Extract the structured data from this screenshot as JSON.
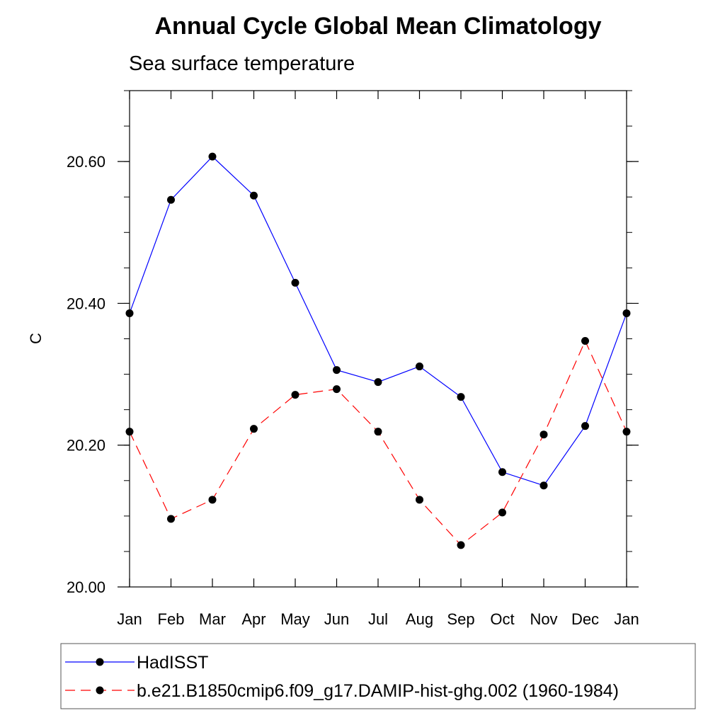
{
  "chart_data": {
    "type": "line",
    "title": "Annual Cycle Global Mean Climatology",
    "subtitle": "Sea surface temperature",
    "xlabel": "",
    "ylabel": "C",
    "categories": [
      "Jan",
      "Feb",
      "Mar",
      "Apr",
      "May",
      "Jun",
      "Jul",
      "Aug",
      "Sep",
      "Oct",
      "Nov",
      "Dec",
      "Jan"
    ],
    "ylim": [
      20.0,
      20.7
    ],
    "yticks": [
      20.0,
      20.2,
      20.4,
      20.6
    ],
    "ytick_labels": [
      "20.00",
      "20.20",
      "20.40",
      "20.60"
    ],
    "yminor_step": 0.05,
    "grid": false,
    "legend_position": "bottom",
    "series": [
      {
        "name": "HadISST",
        "color": "#0000ff",
        "dash": "solid",
        "marker": "circle",
        "values": [
          20.386,
          20.546,
          20.607,
          20.552,
          20.429,
          20.306,
          20.289,
          20.311,
          20.268,
          20.162,
          20.143,
          20.227,
          20.386
        ]
      },
      {
        "name": "b.e21.B1850cmip6.f09_g17.DAMIP-hist-ghg.002 (1960-1984)",
        "color": "#ff0000",
        "dash": "dashed",
        "marker": "circle",
        "values": [
          20.219,
          20.096,
          20.123,
          20.223,
          20.271,
          20.279,
          20.219,
          20.123,
          20.059,
          20.105,
          20.215,
          20.347,
          20.219
        ]
      }
    ]
  }
}
